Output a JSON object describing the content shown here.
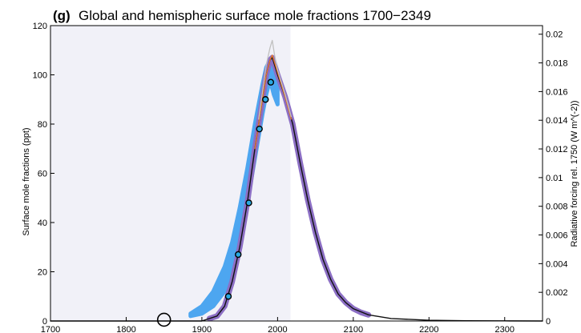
{
  "chart_data": {
    "type": "line",
    "panel_label": "(g)",
    "title": "Global and hemispheric surface mole fractions 1700−2349",
    "xlabel": "",
    "ylabel": "Surface mole fractions (ppt)",
    "y2label": "Radiative forcing rel. 1750 (W m^(-2))",
    "xlim": [
      1700,
      2350
    ],
    "ylim": [
      0,
      120
    ],
    "y2lim": [
      0,
      0.0206
    ],
    "xticks": [
      1700,
      1800,
      1900,
      2000,
      2100,
      2200,
      2300
    ],
    "yticks": [
      0,
      20,
      40,
      60,
      80,
      100,
      120
    ],
    "y2ticks": [
      "0",
      "0.002",
      "0.004",
      "0.006",
      "0.008",
      "0.01",
      "0.012",
      "0.014",
      "0.016",
      "0.018",
      "0.02"
    ],
    "y2tick_values": [
      0,
      0.002,
      0.004,
      0.006,
      0.008,
      0.01,
      0.012,
      0.014,
      0.016,
      0.018,
      0.02
    ],
    "grid": false,
    "shaded_region": {
      "x_start": 1700,
      "x_end": 2017
    },
    "series": [
      {
        "style": "band",
        "color": "#4da6f0",
        "x": [
          1885,
          1900,
          1915,
          1930,
          1940,
          1950,
          1960,
          1970,
          1980,
          1985,
          1990,
          1995,
          2000
        ],
        "upper": [
          3,
          6,
          12,
          22,
          32,
          46,
          62,
          80,
          96,
          103,
          106,
          100,
          94
        ],
        "lower": [
          2,
          3,
          6,
          12,
          20,
          32,
          48,
          66,
          84,
          92,
          98,
          92,
          88
        ]
      },
      {
        "style": "thick",
        "color": "#8c6fc4",
        "x": [
          1910,
          1920,
          1930,
          1940,
          1950,
          1960,
          1970,
          1980,
          1985,
          1990,
          1993,
          2000,
          2010,
          2020,
          2030,
          2040,
          2050,
          2060,
          2070,
          2080,
          2090,
          2100,
          2110,
          2120
        ],
        "y": [
          1,
          2,
          6,
          16,
          30,
          48,
          70,
          90,
          100,
          106,
          107,
          100,
          91,
          80,
          64,
          49,
          36,
          25,
          17,
          11,
          7.5,
          5,
          3.5,
          2.5
        ]
      },
      {
        "style": "line",
        "color": "#111111",
        "x": [
          1700,
          1900,
          1920,
          1930,
          1940,
          1950,
          1960,
          1970,
          1980,
          1985,
          1990,
          1993,
          2000,
          2010,
          2020,
          2030,
          2040,
          2050,
          2060,
          2070,
          2080,
          2090,
          2100,
          2120,
          2150,
          2200,
          2250,
          2300,
          2350
        ],
        "y": [
          0,
          0,
          2,
          6,
          16,
          30,
          48,
          70,
          90,
          100,
          106,
          107,
          100,
          91,
          80,
          64,
          49,
          36,
          25,
          17,
          11,
          7.5,
          5,
          2.5,
          1,
          0.3,
          0.1,
          0.05,
          0
        ]
      },
      {
        "style": "thin",
        "color": "#e8782a",
        "x": [
          1970,
          1975,
          1980,
          1985,
          1990,
          1993,
          2000,
          2010,
          2018
        ],
        "y": [
          70,
          80,
          90,
          100,
          106,
          108,
          101,
          91,
          82
        ]
      },
      {
        "style": "thin",
        "color": "#c0c0c0",
        "x": [
          1975,
          1980,
          1985,
          1990,
          1993,
          1996,
          2000,
          2010,
          2018
        ],
        "y": [
          82,
          93,
          104,
          111,
          114,
          108,
          102,
          92,
          83
        ]
      },
      {
        "style": "markers",
        "marker": "circle",
        "color": "#2aa8e0",
        "x": [
          1935,
          1948,
          1962,
          1976,
          1984,
          1991
        ],
        "y": [
          10,
          27,
          48,
          78,
          90,
          97
        ]
      },
      {
        "style": "markers",
        "marker": "open-circle",
        "color": "#000000",
        "x": [
          1850
        ],
        "y": [
          0.5
        ]
      }
    ]
  }
}
